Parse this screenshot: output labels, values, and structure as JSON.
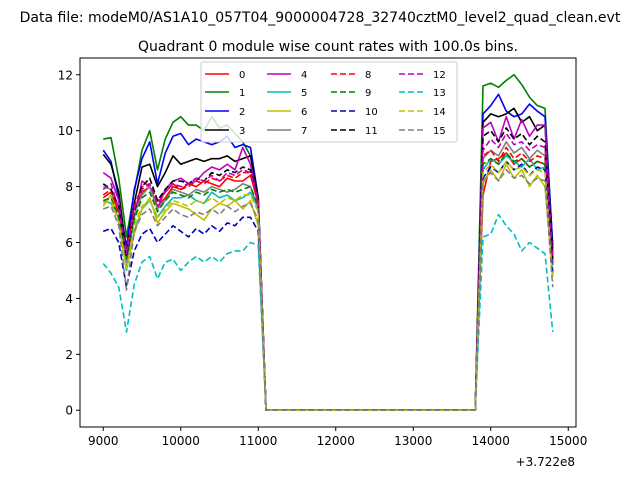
{
  "header": {
    "file_title": "Data file: modeM0/AS1A10_057T04_9000004728_32740cztM0_level2_quad_clean.evt"
  },
  "chart_data": {
    "type": "line",
    "title": "Quadrant 0 module wise count rates with 100.0s bins.",
    "xlabel": "",
    "ylabel": "",
    "x_offset_label": "+3.722e8",
    "xlim": [
      8700,
      15100
    ],
    "ylim": [
      -0.6,
      12.6
    ],
    "x_ticks": [
      9000,
      10000,
      11000,
      12000,
      13000,
      14000,
      15000
    ],
    "y_ticks": [
      0,
      2,
      4,
      6,
      8,
      10,
      12
    ],
    "grid": false,
    "legend_placement": "top-center",
    "x": [
      9000,
      9100,
      9200,
      9300,
      9400,
      9500,
      9600,
      9700,
      9800,
      9900,
      10000,
      10100,
      10200,
      10300,
      10400,
      10500,
      10600,
      10700,
      10800,
      10900,
      11000,
      11100,
      11200,
      11300,
      11400,
      11500,
      11600,
      11700,
      11800,
      11900,
      12000,
      12100,
      12200,
      12300,
      12400,
      12500,
      12600,
      12700,
      12800,
      12900,
      13000,
      13100,
      13200,
      13300,
      13400,
      13500,
      13600,
      13700,
      13800,
      13900,
      14000,
      14100,
      14200,
      14300,
      14400,
      14500,
      14600,
      14700,
      14800
    ],
    "series": [
      {
        "name": "0",
        "color": "#ff0000",
        "dash": "solid",
        "values": [
          7.6,
          7.8,
          7.1,
          5.9,
          7.0,
          7.8,
          8.0,
          7.3,
          7.6,
          8.0,
          7.9,
          8.1,
          8.0,
          8.2,
          8.1,
          8.0,
          8.3,
          8.2,
          8.2,
          8.4,
          7.4,
          0,
          0,
          0,
          0,
          0,
          0,
          0,
          0,
          0,
          0,
          0,
          0,
          0,
          0,
          0,
          0,
          0,
          0,
          0,
          0,
          0,
          0,
          0,
          0,
          0,
          0,
          0,
          0,
          7.7,
          8.9,
          9.0,
          9.2,
          8.8,
          9.0,
          8.7,
          8.9,
          8.8,
          5.4
        ]
      },
      {
        "name": "1",
        "color": "#008000",
        "dash": "solid",
        "values": [
          9.7,
          9.75,
          8.3,
          6.2,
          7.8,
          9.3,
          10.0,
          8.6,
          9.7,
          10.3,
          10.5,
          10.2,
          10.2,
          10.0,
          10.5,
          10.1,
          10.2,
          9.9,
          9.6,
          9.1,
          7.6,
          0,
          0,
          0,
          0,
          0,
          0,
          0,
          0,
          0,
          0,
          0,
          0,
          0,
          0,
          0,
          0,
          0,
          0,
          0,
          0,
          0,
          0,
          0,
          0,
          0,
          0,
          0,
          0,
          11.6,
          11.7,
          11.55,
          11.8,
          12.0,
          11.65,
          11.2,
          10.9,
          10.8,
          5.8
        ]
      },
      {
        "name": "2",
        "color": "#0000ff",
        "dash": "solid",
        "values": [
          9.3,
          8.9,
          7.6,
          5.8,
          7.9,
          9.0,
          9.6,
          8.1,
          9.2,
          9.8,
          9.9,
          9.5,
          9.7,
          9.6,
          9.5,
          9.6,
          9.8,
          9.4,
          9.5,
          9.4,
          7.6,
          0,
          0,
          0,
          0,
          0,
          0,
          0,
          0,
          0,
          0,
          0,
          0,
          0,
          0,
          0,
          0,
          0,
          0,
          0,
          0,
          0,
          0,
          0,
          0,
          0,
          0,
          0,
          0,
          10.6,
          10.9,
          11.3,
          10.7,
          10.5,
          10.6,
          10.95,
          10.7,
          10.5,
          5.9
        ]
      },
      {
        "name": "3",
        "color": "#000000",
        "dash": "solid",
        "values": [
          9.15,
          8.8,
          7.8,
          5.6,
          7.4,
          8.7,
          8.8,
          8.0,
          8.5,
          9.1,
          8.8,
          8.9,
          9.0,
          8.9,
          9.0,
          9.0,
          9.1,
          8.9,
          9.0,
          9.1,
          7.6,
          0,
          0,
          0,
          0,
          0,
          0,
          0,
          0,
          0,
          0,
          0,
          0,
          0,
          0,
          0,
          0,
          0,
          0,
          0,
          0,
          0,
          0,
          0,
          0,
          0,
          0,
          0,
          0,
          10.3,
          10.6,
          10.5,
          10.6,
          10.8,
          10.3,
          10.5,
          10.0,
          10.2,
          5.6
        ]
      },
      {
        "name": "4",
        "color": "#bf00bf",
        "dash": "solid",
        "values": [
          8.5,
          8.3,
          7.5,
          5.3,
          6.9,
          8.2,
          8.0,
          7.2,
          7.9,
          8.2,
          8.3,
          8.1,
          8.2,
          8.5,
          8.7,
          8.6,
          8.8,
          8.6,
          9.4,
          8.8,
          7.4,
          0,
          0,
          0,
          0,
          0,
          0,
          0,
          0,
          0,
          0,
          0,
          0,
          0,
          0,
          0,
          0,
          0,
          0,
          0,
          0,
          0,
          0,
          0,
          0,
          0,
          0,
          0,
          0,
          10.1,
          10.3,
          9.6,
          10.5,
          9.7,
          10.4,
          9.8,
          10.2,
          10.2,
          5.3
        ]
      },
      {
        "name": "5",
        "color": "#00bfbf",
        "dash": "solid",
        "values": [
          7.5,
          7.4,
          6.9,
          5.0,
          6.4,
          7.2,
          7.5,
          6.9,
          7.3,
          7.6,
          7.6,
          7.7,
          7.5,
          7.4,
          7.8,
          7.6,
          7.7,
          7.5,
          7.6,
          7.8,
          7.2,
          0,
          0,
          0,
          0,
          0,
          0,
          0,
          0,
          0,
          0,
          0,
          0,
          0,
          0,
          0,
          0,
          0,
          0,
          0,
          0,
          0,
          0,
          0,
          0,
          0,
          0,
          0,
          0,
          8.6,
          9.0,
          8.8,
          9.1,
          8.9,
          8.7,
          9.0,
          8.6,
          8.7,
          4.9
        ]
      },
      {
        "name": "6",
        "color": "#bfbf00",
        "dash": "solid",
        "values": [
          7.3,
          7.7,
          6.8,
          5.1,
          6.3,
          7.2,
          7.6,
          6.7,
          7.1,
          7.4,
          7.3,
          7.2,
          7.0,
          6.8,
          7.2,
          7.4,
          7.3,
          7.5,
          7.2,
          7.5,
          6.6,
          0,
          0,
          0,
          0,
          0,
          0,
          0,
          0,
          0,
          0,
          0,
          0,
          0,
          0,
          0,
          0,
          0,
          0,
          0,
          0,
          0,
          0,
          0,
          0,
          0,
          0,
          0,
          0,
          8.1,
          8.6,
          8.2,
          8.8,
          8.3,
          8.6,
          8.0,
          8.4,
          8.0,
          4.8
        ]
      },
      {
        "name": "7",
        "color": "#808080",
        "dash": "solid",
        "values": [
          8.0,
          7.9,
          7.2,
          5.3,
          7.0,
          7.7,
          8.0,
          7.2,
          7.5,
          7.9,
          7.8,
          7.7,
          7.9,
          7.8,
          8.0,
          7.9,
          7.8,
          7.9,
          8.1,
          8.0,
          7.2,
          0,
          0,
          0,
          0,
          0,
          0,
          0,
          0,
          0,
          0,
          0,
          0,
          0,
          0,
          0,
          0,
          0,
          0,
          0,
          0,
          0,
          0,
          0,
          0,
          0,
          0,
          0,
          0,
          9.0,
          9.3,
          9.1,
          9.6,
          9.2,
          9.4,
          9.0,
          9.3,
          9.1,
          5.2
        ]
      },
      {
        "name": "8",
        "color": "#ff0000",
        "dash": "dashed",
        "values": [
          7.7,
          7.9,
          7.0,
          5.7,
          7.3,
          8.0,
          8.1,
          7.5,
          7.8,
          8.1,
          7.9,
          8.0,
          8.2,
          8.1,
          8.3,
          8.2,
          8.4,
          8.3,
          8.5,
          8.5,
          7.5,
          0,
          0,
          0,
          0,
          0,
          0,
          0,
          0,
          0,
          0,
          0,
          0,
          0,
          0,
          0,
          0,
          0,
          0,
          0,
          0,
          0,
          0,
          0,
          0,
          0,
          0,
          0,
          0,
          9.1,
          9.3,
          8.9,
          9.4,
          9.0,
          9.2,
          8.9,
          9.1,
          9.0,
          5.5
        ]
      },
      {
        "name": "9",
        "color": "#008000",
        "dash": "dashed",
        "values": [
          7.5,
          7.6,
          6.9,
          5.4,
          6.8,
          7.6,
          7.8,
          7.1,
          7.5,
          7.8,
          7.7,
          7.6,
          7.8,
          7.7,
          7.9,
          7.8,
          7.9,
          7.8,
          7.9,
          8.0,
          7.3,
          0,
          0,
          0,
          0,
          0,
          0,
          0,
          0,
          0,
          0,
          0,
          0,
          0,
          0,
          0,
          0,
          0,
          0,
          0,
          0,
          0,
          0,
          0,
          0,
          0,
          0,
          0,
          0,
          8.8,
          9.0,
          8.8,
          9.2,
          8.9,
          9.0,
          8.7,
          8.9,
          8.8,
          5.2
        ]
      },
      {
        "name": "10",
        "color": "#0000bf",
        "dash": "dashed",
        "values": [
          6.4,
          6.5,
          6.0,
          4.4,
          5.7,
          6.3,
          6.5,
          6.0,
          6.3,
          6.6,
          6.4,
          6.2,
          6.5,
          6.3,
          6.6,
          6.4,
          6.7,
          6.6,
          6.9,
          6.9,
          6.4,
          0,
          0,
          0,
          0,
          0,
          0,
          0,
          0,
          0,
          0,
          0,
          0,
          0,
          0,
          0,
          0,
          0,
          0,
          0,
          0,
          0,
          0,
          0,
          0,
          0,
          0,
          0,
          0,
          8.3,
          8.7,
          8.5,
          8.9,
          8.6,
          8.8,
          8.4,
          8.7,
          8.6,
          4.9
        ]
      },
      {
        "name": "11",
        "color": "#000000",
        "dash": "dashed",
        "values": [
          8.1,
          7.9,
          7.3,
          5.5,
          7.1,
          8.0,
          8.3,
          7.5,
          7.9,
          8.2,
          8.2,
          8.1,
          8.3,
          8.2,
          8.5,
          8.4,
          8.6,
          8.5,
          8.7,
          8.6,
          7.5,
          0,
          0,
          0,
          0,
          0,
          0,
          0,
          0,
          0,
          0,
          0,
          0,
          0,
          0,
          0,
          0,
          0,
          0,
          0,
          0,
          0,
          0,
          0,
          0,
          0,
          0,
          0,
          0,
          9.8,
          10.0,
          9.6,
          10.1,
          9.7,
          9.9,
          9.5,
          9.8,
          9.6,
          5.4
        ]
      },
      {
        "name": "12",
        "color": "#bf00bf",
        "dash": "dashed",
        "values": [
          7.9,
          8.1,
          7.2,
          5.6,
          7.2,
          7.9,
          8.1,
          7.4,
          7.8,
          8.1,
          8.0,
          8.1,
          8.3,
          8.2,
          8.4,
          8.2,
          8.5,
          8.4,
          8.6,
          8.5,
          7.5,
          0,
          0,
          0,
          0,
          0,
          0,
          0,
          0,
          0,
          0,
          0,
          0,
          0,
          0,
          0,
          0,
          0,
          0,
          0,
          0,
          0,
          0,
          0,
          0,
          0,
          0,
          0,
          0,
          9.3,
          9.7,
          9.4,
          9.9,
          9.5,
          9.6,
          9.3,
          9.5,
          9.4,
          5.3
        ]
      },
      {
        "name": "13",
        "color": "#00bfbf",
        "dash": "dashed",
        "values": [
          5.25,
          4.9,
          4.4,
          2.8,
          4.5,
          5.3,
          5.5,
          4.7,
          5.3,
          5.4,
          5.0,
          5.3,
          5.5,
          5.3,
          5.5,
          5.3,
          5.6,
          5.7,
          5.7,
          6.0,
          5.9,
          0,
          0,
          0,
          0,
          0,
          0,
          0,
          0,
          0,
          0,
          0,
          0,
          0,
          0,
          0,
          0,
          0,
          0,
          0,
          0,
          0,
          0,
          0,
          0,
          0,
          0,
          0,
          0,
          6.2,
          6.3,
          7.0,
          6.6,
          6.3,
          5.7,
          6.0,
          5.8,
          5.6,
          2.8
        ]
      },
      {
        "name": "14",
        "color": "#bfbf00",
        "dash": "dashed",
        "values": [
          7.4,
          7.5,
          6.7,
          5.0,
          6.6,
          7.3,
          7.5,
          6.9,
          7.2,
          7.5,
          7.4,
          7.3,
          7.5,
          7.4,
          7.6,
          7.4,
          7.6,
          7.5,
          7.7,
          7.7,
          7.1,
          0,
          0,
          0,
          0,
          0,
          0,
          0,
          0,
          0,
          0,
          0,
          0,
          0,
          0,
          0,
          0,
          0,
          0,
          0,
          0,
          0,
          0,
          0,
          0,
          0,
          0,
          0,
          0,
          8.5,
          8.8,
          8.5,
          8.9,
          8.6,
          8.7,
          8.4,
          8.6,
          8.5,
          4.6
        ]
      },
      {
        "name": "15",
        "color": "#808080",
        "dash": "dashed",
        "values": [
          7.2,
          7.3,
          6.6,
          4.3,
          6.4,
          7.0,
          7.2,
          6.6,
          6.9,
          7.2,
          7.0,
          6.9,
          7.1,
          7.0,
          7.2,
          7.0,
          7.3,
          7.1,
          7.3,
          7.4,
          6.8,
          0,
          0,
          0,
          0,
          0,
          0,
          0,
          0,
          0,
          0,
          0,
          0,
          0,
          0,
          0,
          0,
          0,
          0,
          0,
          0,
          0,
          0,
          0,
          0,
          0,
          0,
          0,
          0,
          8.2,
          8.5,
          8.2,
          8.6,
          8.3,
          8.4,
          8.1,
          8.3,
          8.2,
          4.4
        ]
      }
    ]
  }
}
